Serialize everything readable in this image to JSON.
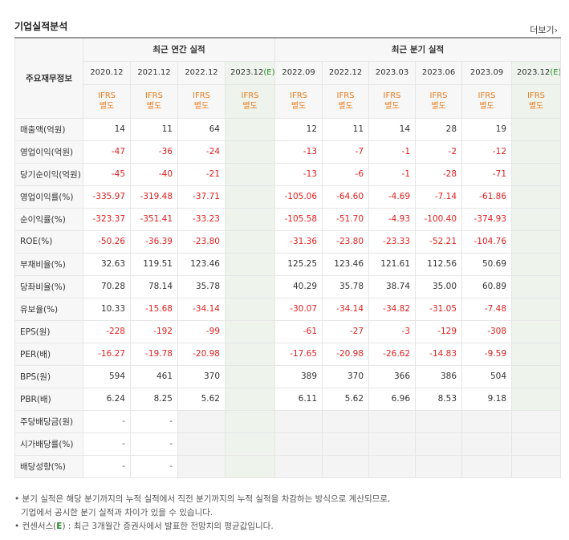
{
  "title": "기업실적분석",
  "more_label": "더보기",
  "more_icon": "chevron-right-icon",
  "row_header": "주요재무정보",
  "groups": {
    "annual": "최근 연간 실적",
    "quarter": "최근 분기 실적"
  },
  "annual_periods": [
    "2020.12",
    "2021.12",
    "2022.12",
    "2023.12"
  ],
  "quarter_periods": [
    "2022.09",
    "2022.12",
    "2023.03",
    "2023.06",
    "2023.09",
    "2023.12"
  ],
  "estimate_mark": "(E)",
  "ifrs_top": "IFRS",
  "ifrs_bottom": "별도",
  "rows": [
    {
      "label": "매출액(억원)",
      "annual": [
        "14",
        "11",
        "64",
        ""
      ],
      "quarter": [
        "12",
        "11",
        "14",
        "28",
        "19",
        ""
      ]
    },
    {
      "label": "영업이익(억원)",
      "annual": [
        "-47",
        "-36",
        "-24",
        ""
      ],
      "quarter": [
        "-13",
        "-7",
        "-1",
        "-2",
        "-12",
        ""
      ]
    },
    {
      "label": "당기순이익(억원)",
      "annual": [
        "-45",
        "-40",
        "-21",
        ""
      ],
      "quarter": [
        "-13",
        "-6",
        "-1",
        "-28",
        "-71",
        ""
      ]
    },
    {
      "label": "영업이익률(%)",
      "annual": [
        "-335.97",
        "-319.48",
        "-37.71",
        ""
      ],
      "quarter": [
        "-105.06",
        "-64.60",
        "-4.69",
        "-7.14",
        "-61.86",
        ""
      ]
    },
    {
      "label": "순이익률(%)",
      "annual": [
        "-323.37",
        "-351.41",
        "-33.23",
        ""
      ],
      "quarter": [
        "-105.58",
        "-51.70",
        "-4.93",
        "-100.40",
        "-374.93",
        ""
      ]
    },
    {
      "label": "ROE(%)",
      "annual": [
        "-50.26",
        "-36.39",
        "-23.80",
        ""
      ],
      "quarter": [
        "-31.36",
        "-23.80",
        "-23.33",
        "-52.21",
        "-104.76",
        ""
      ]
    },
    {
      "label": "부채비율(%)",
      "annual": [
        "32.63",
        "119.51",
        "123.46",
        ""
      ],
      "quarter": [
        "125.25",
        "123.46",
        "121.61",
        "112.56",
        "50.69",
        ""
      ]
    },
    {
      "label": "당좌비율(%)",
      "annual": [
        "70.28",
        "78.14",
        "35.78",
        ""
      ],
      "quarter": [
        "40.29",
        "35.78",
        "38.74",
        "35.00",
        "60.89",
        ""
      ]
    },
    {
      "label": "유보율(%)",
      "annual": [
        "10.33",
        "-15.68",
        "-34.14",
        ""
      ],
      "quarter": [
        "-30.07",
        "-34.14",
        "-34.82",
        "-31.05",
        "-7.48",
        ""
      ]
    },
    {
      "label": "EPS(원)",
      "annual": [
        "-228",
        "-192",
        "-99",
        ""
      ],
      "quarter": [
        "-61",
        "-27",
        "-3",
        "-129",
        "-308",
        ""
      ]
    },
    {
      "label": "PER(배)",
      "annual": [
        "-16.27",
        "-19.78",
        "-20.98",
        ""
      ],
      "quarter": [
        "-17.65",
        "-20.98",
        "-26.62",
        "-14.83",
        "-9.59",
        ""
      ]
    },
    {
      "label": "BPS(원)",
      "annual": [
        "594",
        "461",
        "370",
        ""
      ],
      "quarter": [
        "389",
        "370",
        "366",
        "386",
        "504",
        ""
      ]
    },
    {
      "label": "PBR(배)",
      "annual": [
        "6.24",
        "8.25",
        "5.62",
        ""
      ],
      "quarter": [
        "6.11",
        "5.62",
        "6.96",
        "8.53",
        "9.18",
        ""
      ]
    },
    {
      "label": "주당배당금(원)",
      "annual": [
        "-",
        "-",
        "",
        ""
      ],
      "quarter": null
    },
    {
      "label": "시가배당률(%)",
      "annual": [
        "-",
        "-",
        "",
        ""
      ],
      "quarter": null
    },
    {
      "label": "배당성향(%)",
      "annual": [
        "-",
        "-",
        "",
        ""
      ],
      "quarter": null
    }
  ],
  "notes": {
    "line1": "분기 실적은 해당 분기까지의 누적 실적에서 직전 분기까지의 누적 실적을 차감하는 방식으로 계산되므로,",
    "line2": "기업에서 공시한 분기 실적과 차이가 있을 수 있습니다.",
    "line3_a": "컨센서스(",
    "line3_e": "E",
    "line3_b": ") : 최근 3개월간 증권사에서 발표한 전망치의 평균값입니다."
  },
  "colors": {
    "negative": "#e02020",
    "ifrs": "#e87b1e",
    "estimate_bg": "#eef4ec",
    "estimate_mark": "#2a8a2a"
  }
}
